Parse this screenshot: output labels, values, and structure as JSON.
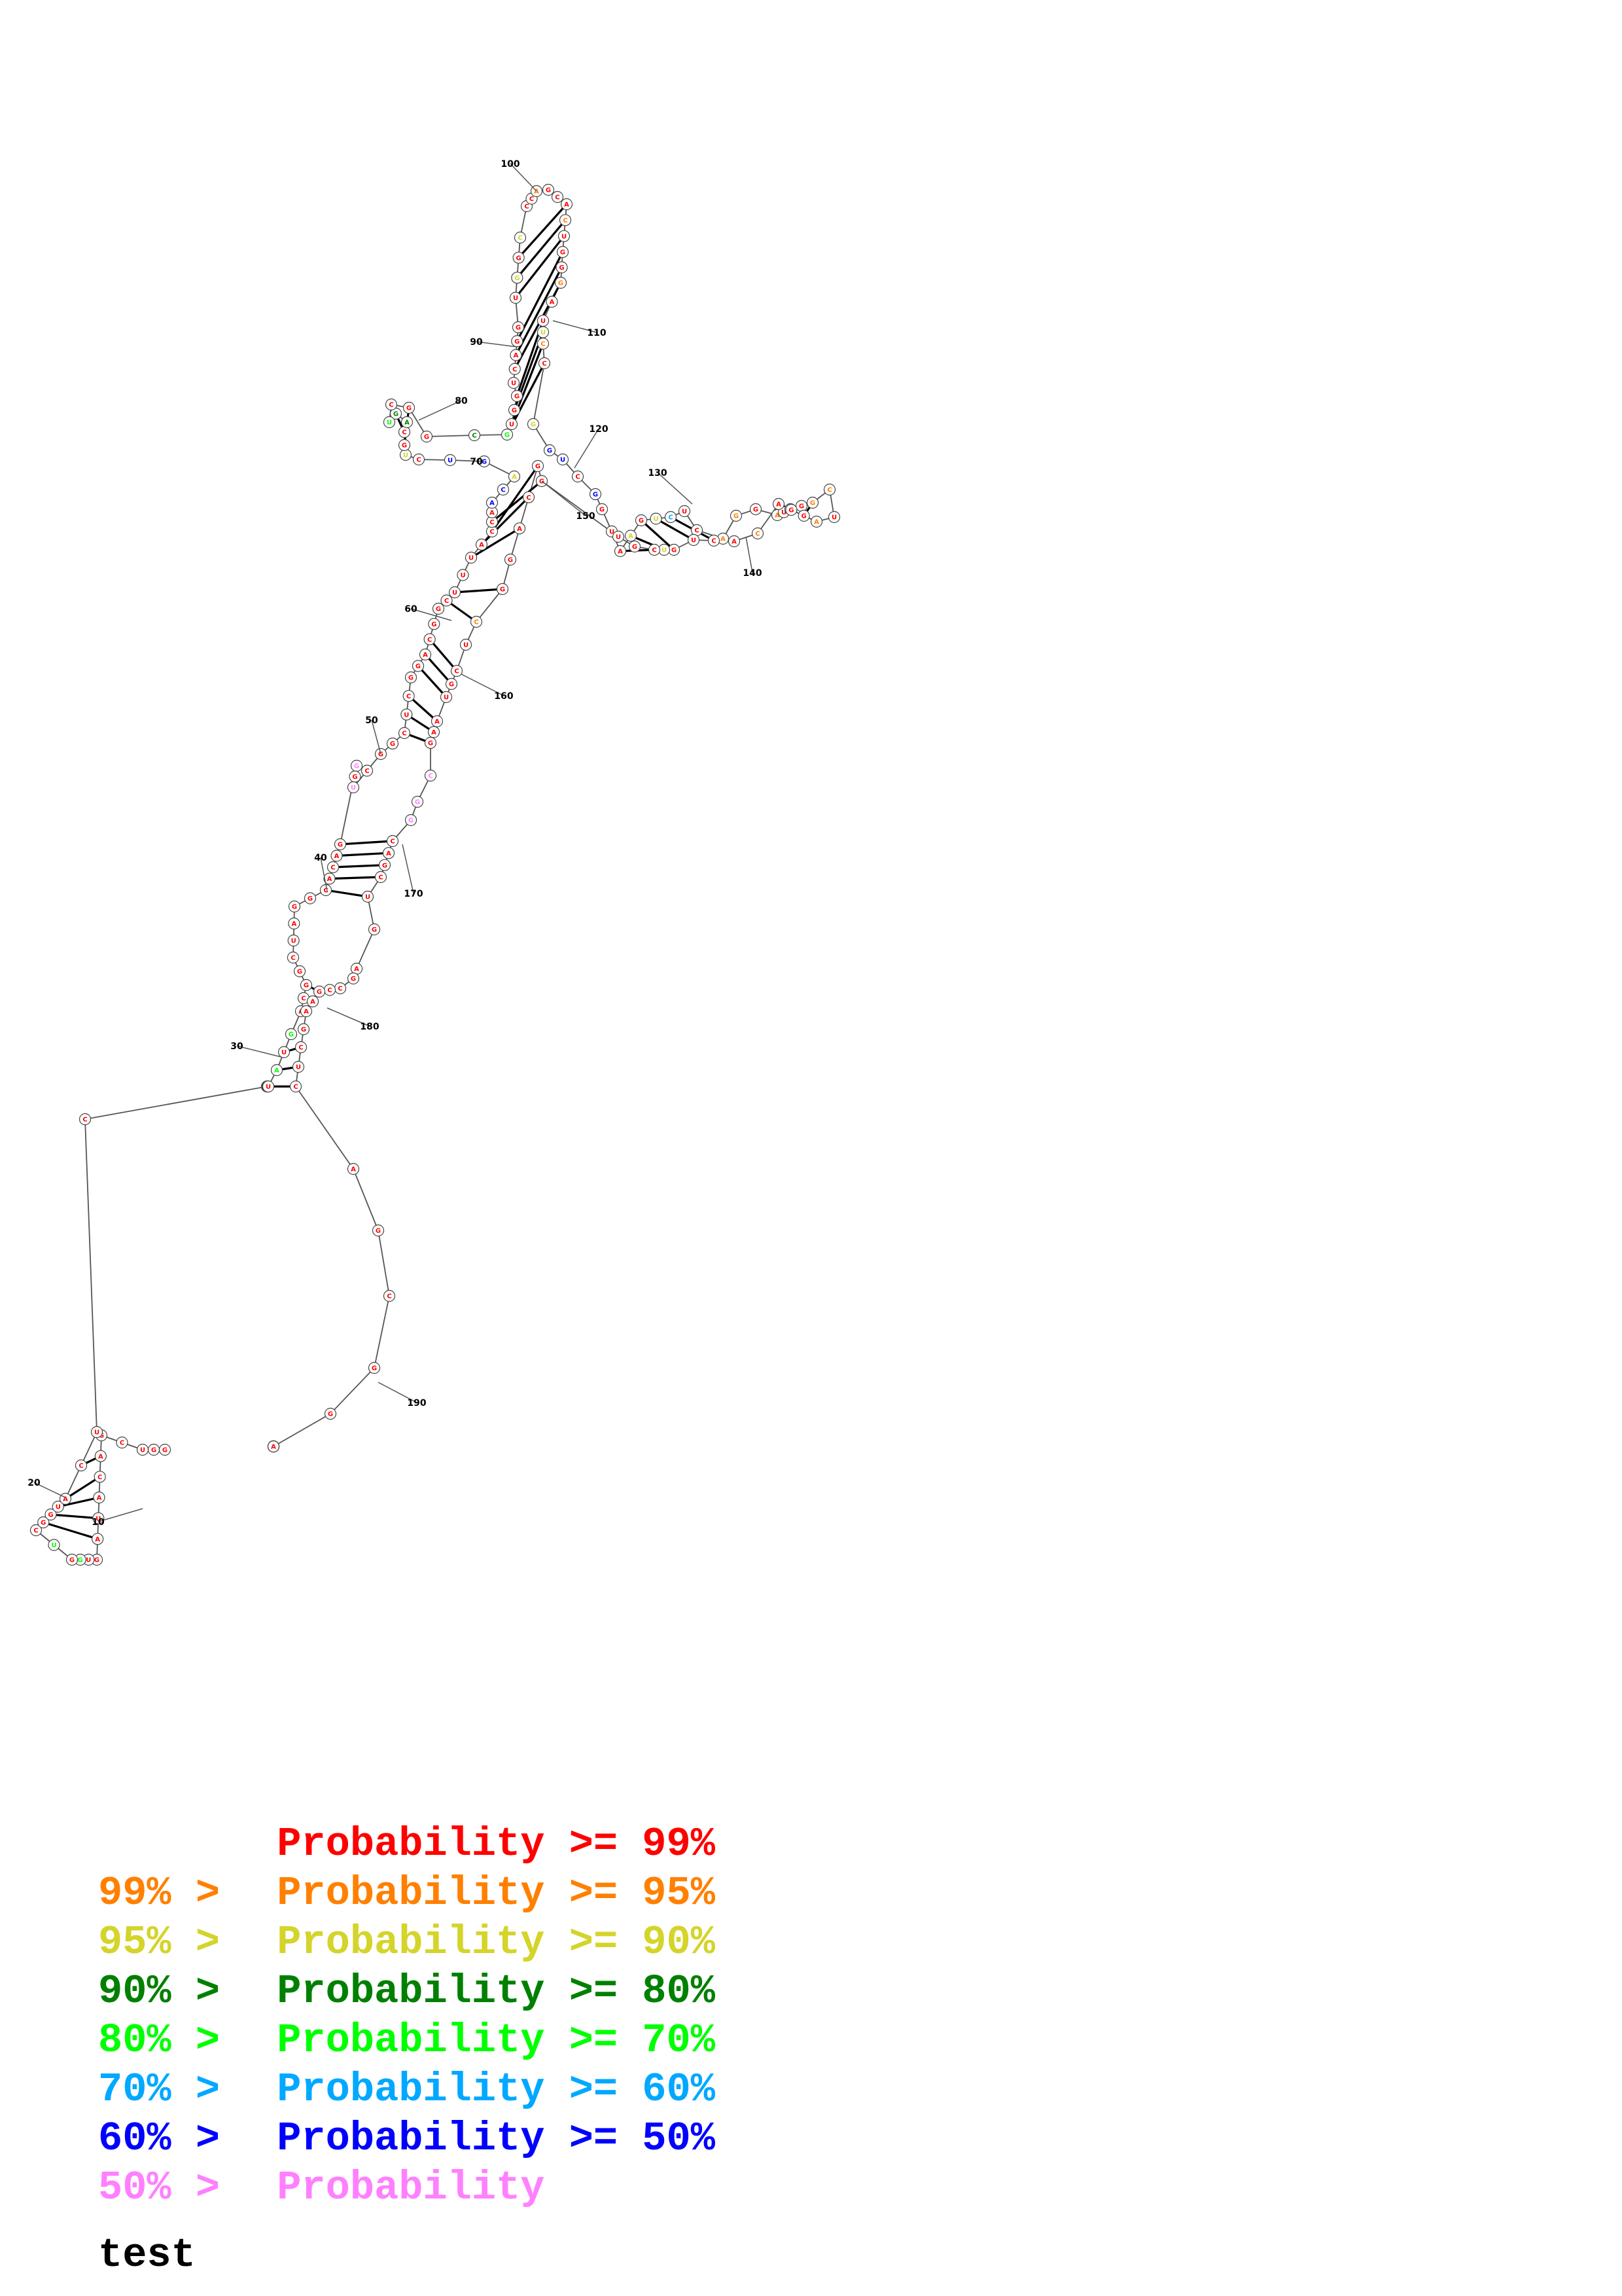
{
  "diagram": {
    "sequence": "GGUCGACAUAGUGGUCGGUACUCUCGGUAUGACGGCUAGGCACAGGGUCGGCUCGGACGGCUUUACCAACAGUCUGCAGUCGGCGUGGUCAGGUGGCCCAGCACUGGGAUUCCGGUCGGUAAGUCUCAGGAUCGGCUAGGACACUGUCGUGGCAGGCUCGUAAGCGGCAGCUGAGCCGAAGCUCAGCGGAUCGAGGA",
    "pairs": [
      [
        5,
        22
      ],
      [
        6,
        21
      ],
      [
        7,
        20
      ],
      [
        8,
        19
      ],
      [
        9,
        18
      ],
      [
        10,
        17
      ],
      [
        28,
        184
      ],
      [
        29,
        183
      ],
      [
        30,
        182
      ],
      [
        32,
        180
      ],
      [
        33,
        179
      ],
      [
        34,
        178
      ],
      [
        41,
        172
      ],
      [
        42,
        171
      ],
      [
        43,
        170
      ],
      [
        44,
        169
      ],
      [
        45,
        168
      ],
      [
        52,
        164
      ],
      [
        53,
        163
      ],
      [
        54,
        162
      ],
      [
        56,
        161
      ],
      [
        57,
        160
      ],
      [
        58,
        159
      ],
      [
        61,
        157
      ],
      [
        62,
        156
      ],
      [
        64,
        154
      ],
      [
        65,
        153
      ],
      [
        66,
        152
      ],
      [
        67,
        151
      ],
      [
        76,
        82
      ],
      [
        77,
        81
      ],
      [
        85,
        113
      ],
      [
        86,
        112
      ],
      [
        87,
        111
      ],
      [
        88,
        110
      ],
      [
        90,
        108
      ],
      [
        91,
        107
      ],
      [
        92,
        106
      ],
      [
        94,
        105
      ],
      [
        95,
        104
      ],
      [
        96,
        103
      ],
      [
        121,
        148
      ],
      [
        122,
        147
      ],
      [
        123,
        146
      ],
      [
        124,
        145
      ],
      [
        125,
        144
      ],
      [
        133,
        141
      ],
      [
        134,
        140
      ],
      [
        135,
        139
      ]
    ],
    "tick_labels": [
      "10",
      "20",
      "30",
      "40",
      "50",
      "60",
      "70",
      "80",
      "90",
      "100",
      "110",
      "120",
      "130",
      "140",
      "150",
      "160",
      "170",
      "180",
      "190"
    ],
    "base_color_classes": {
      "red": "#ff0000",
      "orange": "#ff8000",
      "yellow": "#d4d42a",
      "dark-green": "#008000",
      "green": "#00ff00",
      "cyan": "#00a8ff",
      "blue": "#0000ff",
      "pink": "#ff80ff"
    },
    "low_probability_bases": {
      "orange": [
        100,
        104,
        108,
        112,
        128,
        129,
        131,
        135,
        136,
        138,
        142,
        157
      ],
      "yellow": [
        71,
        75,
        95,
        97,
        111,
        114,
        122,
        124,
        147
      ],
      "dark-green": [
        78,
        79,
        84
      ],
      "green": [
        13,
        15,
        27,
        29,
        31,
        80,
        85
      ],
      "cyan": [
        25,
        125
      ],
      "blue": [
        69,
        70,
        72,
        73,
        115,
        116,
        118
      ],
      "pink": [
        26,
        46,
        48,
        165,
        166,
        167
      ]
    }
  },
  "legend": [
    {
      "low": "",
      "mid": " Probability ",
      "high": ">= 99%",
      "color": "#ff0000"
    },
    {
      "low": "99% >",
      "mid": " Probability ",
      "high": ">= 95%",
      "color": "#ff8000"
    },
    {
      "low": "95% >",
      "mid": " Probability ",
      "high": ">= 90%",
      "color": "#d4d42a"
    },
    {
      "low": "90% >",
      "mid": " Probability ",
      "high": ">= 80%",
      "color": "#008000"
    },
    {
      "low": "80% >",
      "mid": " Probability ",
      "high": ">= 70%",
      "color": "#00ff00"
    },
    {
      "low": "70% >",
      "mid": " Probability ",
      "high": ">= 60%",
      "color": "#00a8ff"
    },
    {
      "low": "60% >",
      "mid": " Probability ",
      "high": ">= 50%",
      "color": "#0000ff"
    },
    {
      "low": "50% >",
      "mid": " Probability",
      "high": "",
      "color": "#ff80ff"
    }
  ],
  "caption": "test"
}
